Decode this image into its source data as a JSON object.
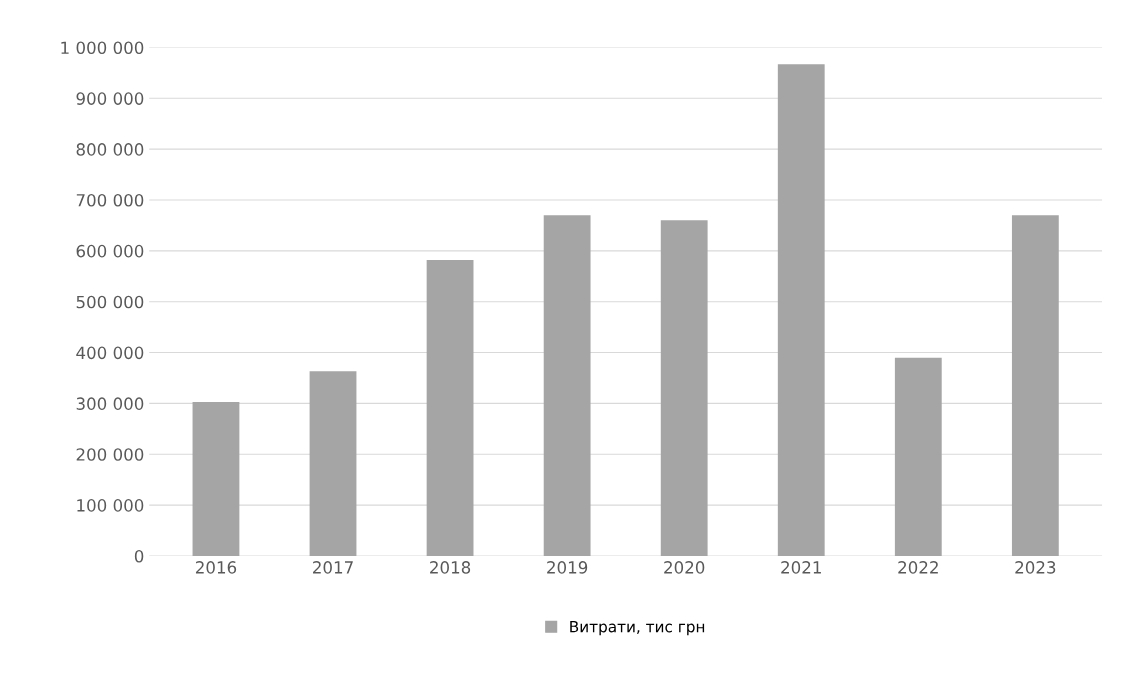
{
  "chart_data": {
    "type": "bar",
    "categories": [
      "2016",
      "2017",
      "2018",
      "2019",
      "2020",
      "2021",
      "2022",
      "2023"
    ],
    "series": [
      {
        "name": "Витрати, тис грн",
        "color": "#a5a5a5",
        "values": [
          303000,
          363000,
          582000,
          670000,
          660000,
          967000,
          390000,
          670000
        ]
      }
    ],
    "ylim": [
      0,
      1000000
    ],
    "yticks": [
      {
        "value": 0,
        "label": "0"
      },
      {
        "value": 100000,
        "label": "100 000"
      },
      {
        "value": 200000,
        "label": "200 000"
      },
      {
        "value": 300000,
        "label": "300 000"
      },
      {
        "value": 400000,
        "label": "400 000"
      },
      {
        "value": 500000,
        "label": "500 000"
      },
      {
        "value": 600000,
        "label": "600 000"
      },
      {
        "value": 700000,
        "label": "700 000"
      },
      {
        "value": 800000,
        "label": "800 000"
      },
      {
        "value": 900000,
        "label": "900 000"
      },
      {
        "value": 1000000,
        "label": "1 000 000"
      }
    ],
    "grid": "y",
    "legend": "bottom"
  }
}
